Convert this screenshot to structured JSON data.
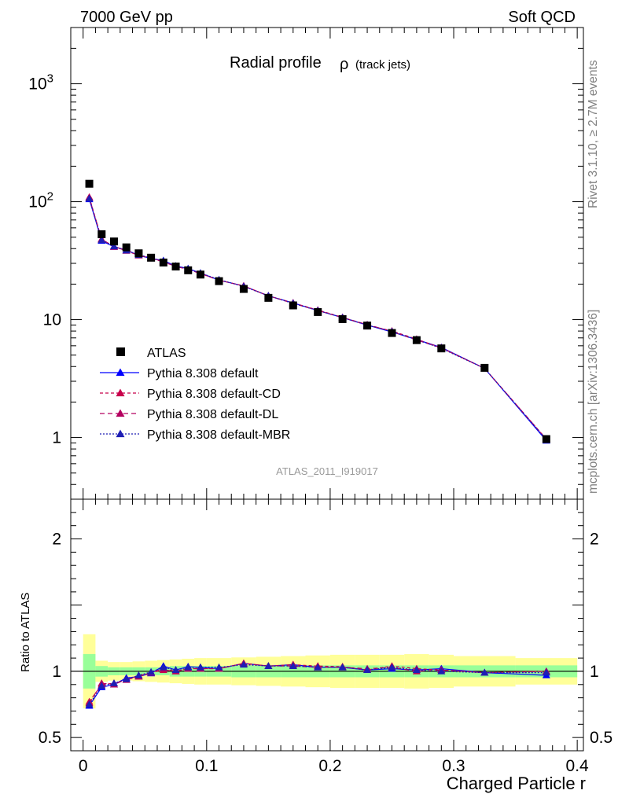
{
  "header": {
    "left": "7000 GeV pp",
    "right": "Soft QCD",
    "side_top": "Rivet 3.1.10, ≥ 2.7M events",
    "side_bottom": "mcplots.cern.ch [arXiv:1306.3436]"
  },
  "chart_data": {
    "type": "line",
    "title": "Radial profile",
    "title_symbol": "ρ",
    "title_suffix": "(track jets)",
    "xlabel": "Charged Particle r",
    "ylabel": "",
    "ratio_ylabel": "Ratio to ATLAS",
    "analysis_id": "ATLAS_2011_I919017",
    "yscale": "log",
    "xlim": [
      -0.01,
      0.405
    ],
    "ylim": [
      0.3,
      3000
    ],
    "ratio_ylim": [
      0.4,
      2.3
    ],
    "x_ticks": [
      "0",
      "0.1",
      "0.2",
      "0.3",
      "0.4"
    ],
    "y_ticks": [
      "1",
      "10",
      "10^2",
      "10^3"
    ],
    "ratio_y_ticks": [
      "0.5",
      "1",
      "2"
    ],
    "legend_position": "bottom-left",
    "x": [
      0.005,
      0.015,
      0.025,
      0.035,
      0.045,
      0.055,
      0.065,
      0.075,
      0.085,
      0.095,
      0.11,
      0.13,
      0.15,
      0.17,
      0.19,
      0.21,
      0.23,
      0.25,
      0.27,
      0.29,
      0.325,
      0.375
    ],
    "bin_edges": [
      0.0,
      0.01,
      0.02,
      0.03,
      0.04,
      0.05,
      0.06,
      0.07,
      0.08,
      0.09,
      0.1,
      0.12,
      0.14,
      0.16,
      0.18,
      0.2,
      0.22,
      0.24,
      0.26,
      0.28,
      0.3,
      0.35,
      0.4
    ],
    "data": {
      "name": "ATLAS",
      "color": "#000000",
      "values": [
        142,
        53,
        46,
        41,
        36.5,
        33.5,
        30.5,
        28.2,
        26.2,
        24.1,
        21.2,
        18.2,
        15.3,
        13.2,
        11.6,
        10.1,
        8.9,
        7.7,
        6.7,
        5.7,
        3.9,
        0.97
      ],
      "band_inner": [
        0.13,
        0.04,
        0.03,
        0.03,
        0.03,
        0.03,
        0.03,
        0.04,
        0.04,
        0.04,
        0.04,
        0.045,
        0.045,
        0.045,
        0.045,
        0.045,
        0.045,
        0.045,
        0.045,
        0.045,
        0.045,
        0.045
      ],
      "band_outer": [
        0.28,
        0.08,
        0.07,
        0.07,
        0.075,
        0.08,
        0.085,
        0.09,
        0.095,
        0.1,
        0.1,
        0.105,
        0.11,
        0.115,
        0.12,
        0.125,
        0.125,
        0.125,
        0.13,
        0.125,
        0.115,
        0.1
      ]
    },
    "series": [
      {
        "name": "Pythia 8.308 default",
        "color": "#0000ff",
        "dash": "",
        "ratios": [
          0.74,
          0.88,
          0.9,
          0.95,
          0.96,
          0.985,
          1.04,
          1.01,
          1.035,
          1.03,
          1.02,
          1.06,
          1.04,
          1.05,
          1.03,
          1.03,
          1.01,
          1.02,
          1.01,
          1.02,
          0.99,
          0.97
        ]
      },
      {
        "name": "Pythia 8.308 default-CD",
        "color": "#c8004b",
        "dash": "4,3",
        "ratios": [
          0.77,
          0.9,
          0.91,
          0.935,
          0.96,
          0.99,
          1.01,
          1.0,
          1.02,
          1.02,
          1.02,
          1.06,
          1.04,
          1.05,
          1.04,
          1.035,
          1.01,
          1.04,
          1.02,
          1.01,
          0.99,
          1.0
        ]
      },
      {
        "name": "Pythia 8.308 default-DL",
        "color": "#b4005f",
        "dash": "6,4",
        "ratios": [
          0.76,
          0.91,
          0.9,
          0.94,
          0.965,
          0.99,
          1.02,
          1.0,
          1.02,
          1.02,
          1.02,
          1.06,
          1.04,
          1.04,
          1.03,
          1.03,
          1.02,
          1.03,
          1.0,
          1.01,
          0.99,
          1.0
        ]
      },
      {
        "name": "Pythia 8.308 default-MBR",
        "color": "#1e1eb4",
        "dash": "2,2",
        "ratios": [
          0.75,
          0.89,
          0.91,
          0.94,
          0.97,
          0.995,
          1.03,
          1.01,
          1.03,
          1.03,
          1.03,
          1.05,
          1.04,
          1.04,
          1.03,
          1.03,
          1.01,
          1.03,
          1.01,
          1.0,
          0.99,
          0.99
        ]
      }
    ]
  }
}
